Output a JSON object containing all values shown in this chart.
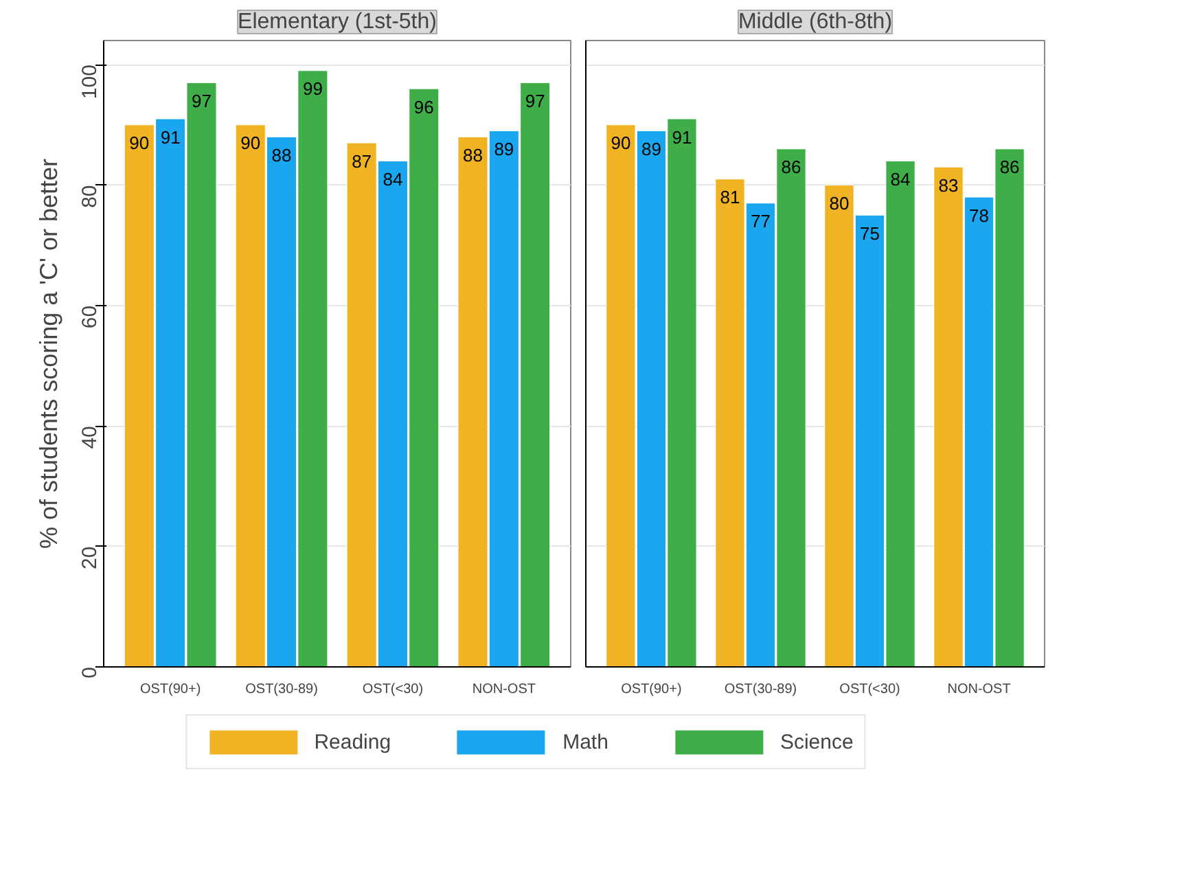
{
  "chart_data": [
    {
      "type": "bar",
      "title": "Elementary (1st-5th)",
      "ylabel": "% of students scoring a 'C' or better",
      "categories": [
        "OST(90+)",
        "OST(30-89)",
        "OST(<30)",
        "NON-OST"
      ],
      "series": [
        {
          "name": "Reading",
          "color": "#f0b323",
          "values": [
            90,
            90,
            87,
            88
          ]
        },
        {
          "name": "Math",
          "color": "#1aa7f0",
          "values": [
            91,
            88,
            84,
            89
          ]
        },
        {
          "name": "Science",
          "color": "#3fae49",
          "values": [
            97,
            99,
            96,
            97
          ]
        }
      ],
      "ylim": [
        0,
        104
      ],
      "yticks": [
        0,
        20,
        40,
        60,
        80,
        100
      ],
      "grid": "y",
      "data_labels": true,
      "legend": "bottom"
    },
    {
      "type": "bar",
      "title": "Middle (6th-8th)",
      "categories": [
        "OST(90+)",
        "OST(30-89)",
        "OST(<30)",
        "NON-OST"
      ],
      "series": [
        {
          "color": "#f0b323",
          "values": [
            90,
            81,
            80,
            83
          ]
        },
        {
          "color": "#1aa7f0",
          "values": [
            89,
            77,
            75,
            78
          ]
        },
        {
          "color": "#3fae49",
          "values": [
            91,
            86,
            84,
            86
          ]
        }
      ],
      "ylim": [
        0,
        104
      ],
      "yticks": [
        0,
        20,
        40,
        60,
        80,
        100
      ],
      "grid": "y",
      "data_labels": true,
      "tick_labels": "x"
    }
  ]
}
